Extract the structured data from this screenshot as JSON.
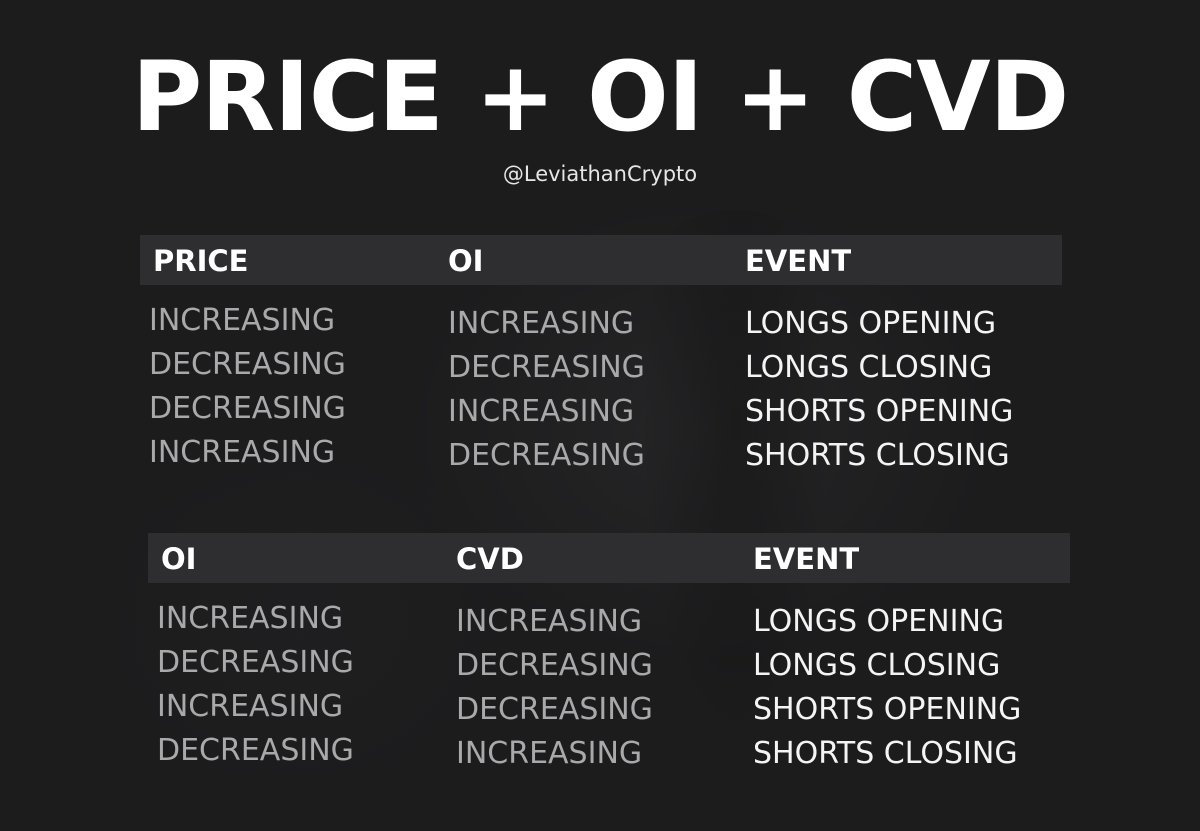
{
  "title": "PRICE + OI + CVD",
  "handle": "@LeviathanCrypto",
  "colors": {
    "background": "#1c1c1d",
    "header_band": "#2e2e30",
    "muted_text": "#a9a9ab",
    "bright_text": "#f4f4f4"
  },
  "table1": {
    "headers": [
      "PRICE",
      "OI",
      "EVENT"
    ],
    "col1": [
      "INCREASING",
      "DECREASING",
      "DECREASING",
      "INCREASING"
    ],
    "col2": [
      "INCREASING",
      "DECREASING",
      "INCREASING",
      "DECREASING"
    ],
    "col3": [
      "LONGS OPENING",
      "LONGS CLOSING",
      "SHORTS OPENING",
      "SHORTS CLOSING"
    ]
  },
  "table2": {
    "headers": [
      "OI",
      "CVD",
      "EVENT"
    ],
    "col1": [
      "INCREASING",
      "DECREASING",
      "INCREASING",
      "DECREASING"
    ],
    "col2": [
      "INCREASING",
      "DECREASING",
      "DECREASING",
      "INCREASING"
    ],
    "col3": [
      "LONGS OPENING",
      "LONGS CLOSING",
      "SHORTS OPENING",
      "SHORTS CLOSING"
    ]
  }
}
